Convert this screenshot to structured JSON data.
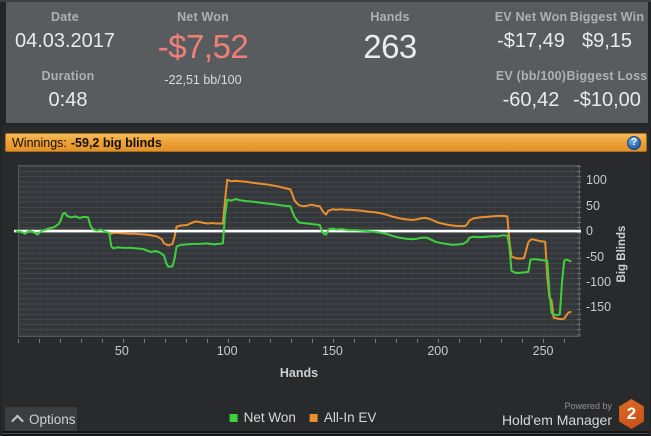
{
  "stats": {
    "date": {
      "label": "Date",
      "value": "04.03.2017"
    },
    "duration": {
      "label": "Duration",
      "value": "0:48"
    },
    "net_won": {
      "label": "Net Won",
      "value": "-$7,52",
      "sub": "-22,51 bb/100"
    },
    "hands": {
      "label": "Hands",
      "value": "263"
    },
    "ev_net_won": {
      "label": "EV Net Won",
      "value": "-$17,49"
    },
    "biggest_win": {
      "label": "Biggest Win",
      "value": "$9,15"
    },
    "ev_bb100": {
      "label": "EV (bb/100)",
      "value": "-60,42"
    },
    "biggest_loss": {
      "label": "Biggest Loss",
      "value": "-$10,00"
    }
  },
  "winnings_bar": {
    "prefix": "Winnings:",
    "value": "-59,2 big blinds",
    "help_glyph": "?"
  },
  "bottom_bar": {
    "options_label": "Options"
  },
  "branding": {
    "powered_by": "Powered by",
    "name": "Hold'em Manager",
    "badge": "2"
  },
  "colors": {
    "net_won_negative": "#ee8077",
    "winnings_bar_orange": "#eda238",
    "series_green": "#3dd13d",
    "series_orange": "#e98f2e",
    "help_icon_blue": "#2e6cb2",
    "badge_orange": "#d2571f",
    "zero_line": "#ffffff"
  },
  "chart_data": {
    "type": "line",
    "title": "Winnings: -59,2 big blinds",
    "xlabel": "Hands",
    "ylabel": "Big Blinds",
    "xlim": [
      -1.2,
      268
    ],
    "ylim": [
      -210,
      130
    ],
    "x_ticks": [
      50,
      100,
      150,
      200,
      250
    ],
    "y_ticks": [
      100,
      50,
      0,
      -50,
      -100,
      -150
    ],
    "grid": true,
    "zero_line": true,
    "legend_position": "bottom",
    "series": [
      {
        "name": "Net Won",
        "color": "#3dd13d",
        "points": [
          [
            0,
            0
          ],
          [
            2,
            -1
          ],
          [
            4,
            -5
          ],
          [
            6,
            1
          ],
          [
            8,
            -2
          ],
          [
            10,
            -7
          ],
          [
            12,
            1
          ],
          [
            14,
            3
          ],
          [
            16,
            6
          ],
          [
            18,
            8
          ],
          [
            20,
            14
          ],
          [
            21,
            22
          ],
          [
            22,
            34
          ],
          [
            23,
            36
          ],
          [
            24,
            30
          ],
          [
            26,
            27
          ],
          [
            28,
            29
          ],
          [
            30,
            26
          ],
          [
            32,
            28
          ],
          [
            34,
            27
          ],
          [
            35,
            12
          ],
          [
            36,
            4
          ],
          [
            38,
            1
          ],
          [
            40,
            3
          ],
          [
            42,
            -1
          ],
          [
            44,
            -3
          ],
          [
            45,
            -30
          ],
          [
            46,
            -34
          ],
          [
            48,
            -32
          ],
          [
            51,
            -33
          ],
          [
            54,
            -33
          ],
          [
            57,
            -34
          ],
          [
            60,
            -35
          ],
          [
            62,
            -38
          ],
          [
            64,
            -41
          ],
          [
            66,
            -39
          ],
          [
            68,
            -42
          ],
          [
            70,
            -48
          ],
          [
            71,
            -62
          ],
          [
            72,
            -70
          ],
          [
            74,
            -69
          ],
          [
            75,
            -55
          ],
          [
            76,
            -30
          ],
          [
            78,
            -27
          ],
          [
            81,
            -26
          ],
          [
            84,
            -25
          ],
          [
            87,
            -25
          ],
          [
            90,
            -24
          ],
          [
            92,
            -25
          ],
          [
            94,
            -26
          ],
          [
            96,
            -25
          ],
          [
            98,
            -24
          ],
          [
            99,
            30
          ],
          [
            100,
            62
          ],
          [
            102,
            60
          ],
          [
            104,
            63
          ],
          [
            106,
            61
          ],
          [
            109,
            59
          ],
          [
            112,
            58
          ],
          [
            116,
            56
          ],
          [
            120,
            54
          ],
          [
            124,
            52
          ],
          [
            127,
            50
          ],
          [
            130,
            49
          ],
          [
            131,
            38
          ],
          [
            132,
            28
          ],
          [
            134,
            17
          ],
          [
            136,
            16
          ],
          [
            138,
            15
          ],
          [
            140,
            14
          ],
          [
            142,
            13
          ],
          [
            144,
            12
          ],
          [
            145,
            0
          ],
          [
            146,
            -6
          ],
          [
            147,
            -7
          ],
          [
            148,
            3
          ],
          [
            150,
            5
          ],
          [
            152,
            3
          ],
          [
            154,
            4
          ],
          [
            156,
            3
          ],
          [
            158,
            2
          ],
          [
            161,
            2
          ],
          [
            164,
            1
          ],
          [
            167,
            0
          ],
          [
            170,
            -1
          ],
          [
            173,
            -3
          ],
          [
            176,
            -6
          ],
          [
            179,
            -10
          ],
          [
            182,
            -13
          ],
          [
            185,
            -15
          ],
          [
            188,
            -16
          ],
          [
            190,
            -15
          ],
          [
            192,
            -13
          ],
          [
            195,
            -13
          ],
          [
            197,
            -17
          ],
          [
            199,
            -21
          ],
          [
            201,
            -23
          ],
          [
            204,
            -25
          ],
          [
            207,
            -27
          ],
          [
            210,
            -26
          ],
          [
            212,
            -25
          ],
          [
            214,
            -20
          ],
          [
            215,
            -13
          ],
          [
            217,
            -11
          ],
          [
            220,
            -12
          ],
          [
            223,
            -11
          ],
          [
            226,
            -10
          ],
          [
            229,
            -10
          ],
          [
            231,
            -8
          ],
          [
            233,
            -9
          ],
          [
            234,
            -30
          ],
          [
            235,
            -78
          ],
          [
            237,
            -82
          ],
          [
            239,
            -82
          ],
          [
            241,
            -81
          ],
          [
            243,
            -80
          ],
          [
            244,
            -56
          ],
          [
            246,
            -55
          ],
          [
            248,
            -56
          ],
          [
            250,
            -57
          ],
          [
            252,
            -58
          ],
          [
            253,
            -120
          ],
          [
            254,
            -160
          ],
          [
            255,
            -164
          ],
          [
            257,
            -165
          ],
          [
            258,
            -163
          ],
          [
            259,
            -100
          ],
          [
            260,
            -58
          ],
          [
            261,
            -56
          ],
          [
            262,
            -57
          ],
          [
            263,
            -59
          ]
        ]
      },
      {
        "name": "All-In EV",
        "color": "#e98f2e",
        "points": [
          [
            0,
            0
          ],
          [
            5,
            0
          ],
          [
            10,
            0
          ],
          [
            15,
            1
          ],
          [
            20,
            1
          ],
          [
            25,
            1
          ],
          [
            30,
            1
          ],
          [
            35,
            0
          ],
          [
            40,
            0
          ],
          [
            43,
            -2
          ],
          [
            45,
            -5
          ],
          [
            47,
            -3
          ],
          [
            50,
            -4
          ],
          [
            53,
            -5
          ],
          [
            56,
            -5
          ],
          [
            59,
            -6
          ],
          [
            62,
            -7
          ],
          [
            65,
            -9
          ],
          [
            67,
            -11
          ],
          [
            69,
            -16
          ],
          [
            70,
            -24
          ],
          [
            72,
            -28
          ],
          [
            74,
            -25
          ],
          [
            75,
            -12
          ],
          [
            76,
            9
          ],
          [
            78,
            11
          ],
          [
            81,
            12
          ],
          [
            83,
            16
          ],
          [
            85,
            19
          ],
          [
            87,
            18
          ],
          [
            89,
            16
          ],
          [
            91,
            15
          ],
          [
            93,
            16
          ],
          [
            95,
            15
          ],
          [
            97,
            15
          ],
          [
            98,
            15
          ],
          [
            99,
            60
          ],
          [
            100,
            101
          ],
          [
            102,
            98
          ],
          [
            104,
            99
          ],
          [
            106,
            98
          ],
          [
            109,
            97
          ],
          [
            112,
            95
          ],
          [
            116,
            93
          ],
          [
            120,
            91
          ],
          [
            124,
            88
          ],
          [
            127,
            85
          ],
          [
            130,
            82
          ],
          [
            131,
            72
          ],
          [
            132,
            60
          ],
          [
            134,
            51
          ],
          [
            136,
            49
          ],
          [
            138,
            50
          ],
          [
            140,
            52
          ],
          [
            142,
            50
          ],
          [
            144,
            49
          ],
          [
            145,
            42
          ],
          [
            146,
            36
          ],
          [
            147,
            33
          ],
          [
            148,
            40
          ],
          [
            150,
            43
          ],
          [
            152,
            42
          ],
          [
            154,
            43
          ],
          [
            156,
            42
          ],
          [
            158,
            42
          ],
          [
            161,
            41
          ],
          [
            164,
            40
          ],
          [
            167,
            38
          ],
          [
            170,
            37
          ],
          [
            173,
            35
          ],
          [
            176,
            32
          ],
          [
            179,
            28
          ],
          [
            182,
            25
          ],
          [
            185,
            23
          ],
          [
            188,
            22
          ],
          [
            190,
            23
          ],
          [
            192,
            25
          ],
          [
            194,
            26
          ],
          [
            196,
            24
          ],
          [
            198,
            21
          ],
          [
            200,
            17
          ],
          [
            202,
            15
          ],
          [
            204,
            13
          ],
          [
            207,
            11
          ],
          [
            210,
            10
          ],
          [
            213,
            10
          ],
          [
            214,
            14
          ],
          [
            215,
            21
          ],
          [
            217,
            25
          ],
          [
            220,
            27
          ],
          [
            223,
            28
          ],
          [
            226,
            29
          ],
          [
            229,
            30
          ],
          [
            231,
            30
          ],
          [
            233,
            29
          ],
          [
            234,
            -20
          ],
          [
            235,
            -50
          ],
          [
            237,
            -53
          ],
          [
            239,
            -54
          ],
          [
            241,
            -53
          ],
          [
            243,
            -22
          ],
          [
            244,
            -17
          ],
          [
            245,
            -16
          ],
          [
            247,
            -18
          ],
          [
            249,
            -20
          ],
          [
            251,
            -21
          ],
          [
            252,
            -90
          ],
          [
            253,
            -130
          ],
          [
            254,
            -136
          ],
          [
            255,
            -170
          ],
          [
            257,
            -172
          ],
          [
            259,
            -173
          ],
          [
            260,
            -172
          ],
          [
            261,
            -166
          ],
          [
            262,
            -160
          ],
          [
            263,
            -159
          ]
        ]
      }
    ]
  }
}
